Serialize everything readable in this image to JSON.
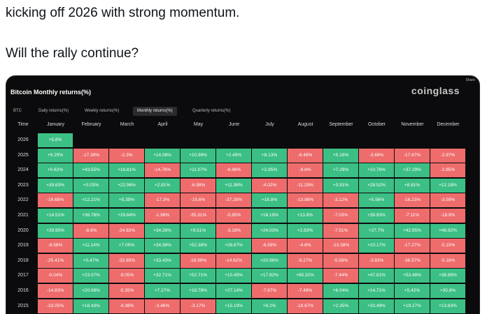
{
  "tweet": {
    "lines": [
      "kicking off 2026 with strong momentum.",
      "Will the rally continue?"
    ]
  },
  "card": {
    "title": "Bitcoin Monthly returns(%)",
    "brand": "coinglass",
    "share": "Share",
    "selector": "BTC",
    "tabs": [
      "Daily returns(%)",
      "Weekly returns(%)",
      "Monthly returns(%)",
      "Quarterly returns(%)"
    ],
    "active_tab": 2,
    "positive_color": "#3cbf84",
    "negative_color": "#ee6c6c",
    "table": {
      "header": [
        "Time",
        "January",
        "February",
        "March",
        "April",
        "May",
        "June",
        "July",
        "August",
        "September",
        "October",
        "November",
        "December"
      ],
      "rows": [
        [
          "2026",
          "+5.8%"
        ],
        [
          "2025",
          "+9.29%",
          "-17.39%",
          "-2.3%",
          "+14.08%",
          "+10.99%",
          "+2.49%",
          "+8.13%",
          "-6.49%",
          "+5.16%",
          "-3.69%",
          "-17.67%",
          "-2.97%"
        ],
        [
          "2024",
          "+0.62%",
          "+43.55%",
          "+16.81%",
          "-14.76%",
          "+11.07%",
          "-6.96%",
          "+2.95%",
          "-8.6%",
          "+7.29%",
          "+10.76%",
          "+37.29%",
          "-2.85%"
        ],
        [
          "2023",
          "+39.63%",
          "+0.03%",
          "+22.96%",
          "+2.81%",
          "-6.98%",
          "+11.98%",
          "-4.02%",
          "-11.29%",
          "+3.91%",
          "+28.52%",
          "+8.81%",
          "+12.18%"
        ],
        [
          "2022",
          "-16.68%",
          "+12.21%",
          "+5.39%",
          "-17.3%",
          "-15.6%",
          "-37.28%",
          "+16.8%",
          "-13.88%",
          "-3.12%",
          "+5.56%",
          "-16.23%",
          "-3.59%"
        ],
        [
          "2021",
          "+14.51%",
          "+36.78%",
          "+29.84%",
          "-1.98%",
          "-35.31%",
          "-5.95%",
          "+18.19%",
          "+13.8%",
          "-7.03%",
          "+39.93%",
          "-7.11%",
          "-18.9%"
        ],
        [
          "2020",
          "+29.95%",
          "-8.6%",
          "-24.92%",
          "+34.26%",
          "+9.51%",
          "-3.18%",
          "+24.03%",
          "+2.83%",
          "-7.51%",
          "+27.7%",
          "+42.95%",
          "+46.92%"
        ],
        [
          "2019",
          "-8.58%",
          "+11.14%",
          "+7.05%",
          "+34.36%",
          "+52.38%",
          "+26.67%",
          "-6.59%",
          "-4.6%",
          "-13.38%",
          "+10.17%",
          "-17.27%",
          "-5.15%"
        ],
        [
          "2018",
          "-25.41%",
          "+0.47%",
          "-32.85%",
          "+33.43%",
          "-18.99%",
          "-14.62%",
          "+20.96%",
          "-9.27%",
          "-5.58%",
          "-3.83%",
          "-36.57%",
          "-5.16%"
        ],
        [
          "2017",
          "-0.04%",
          "+23.07%",
          "-9.05%",
          "+32.71%",
          "+52.71%",
          "+10.45%",
          "+17.92%",
          "+65.32%",
          "-7.44%",
          "+47.81%",
          "+53.48%",
          "+38.89%"
        ],
        [
          "2016",
          "-14.83%",
          "+20.08%",
          "-5.35%",
          "+7.27%",
          "+18.78%",
          "+27.14%",
          "-7.67%",
          "-7.49%",
          "+6.04%",
          "+14.71%",
          "+5.42%",
          "+30.8%"
        ],
        [
          "2015",
          "-33.05%",
          "+18.43%",
          "-4.38%",
          "-3.46%",
          "-3.17%",
          "+15.19%",
          "+8.2%",
          "-18.67%",
          "+2.35%",
          "+33.49%",
          "+19.27%",
          "+13.83%"
        ]
      ]
    }
  }
}
